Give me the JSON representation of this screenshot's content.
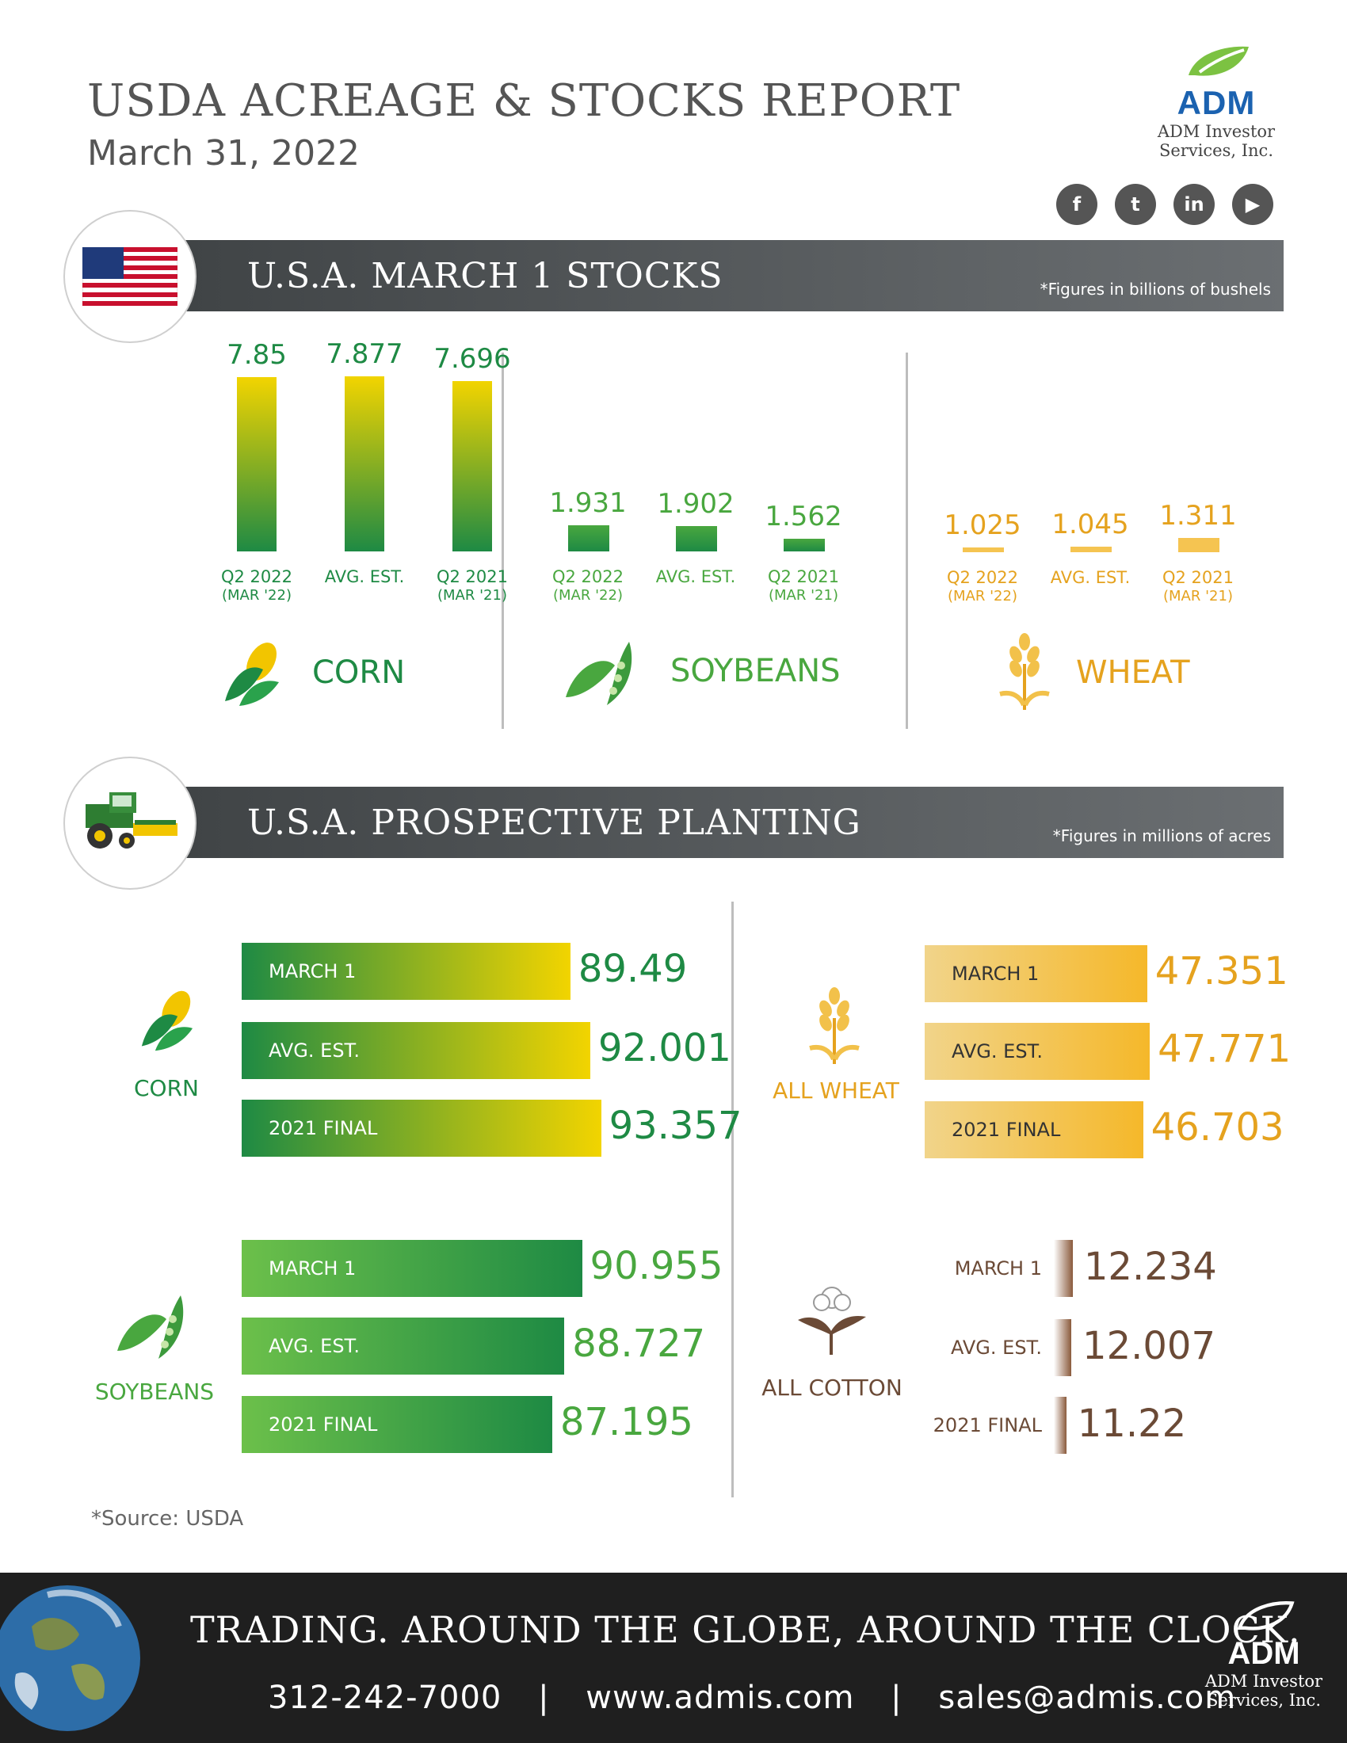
{
  "header": {
    "title": "USDA ACREAGE & STOCKS REPORT",
    "date": "March 31, 2022",
    "logo_text": "ADM",
    "logo_sub_1": "ADM Investor",
    "logo_sub_2": "Services, Inc."
  },
  "social": {
    "facebook": "f",
    "twitter": "t",
    "linkedin": "in",
    "youtube": "▶"
  },
  "stocks": {
    "title": "U.S.A. MARCH 1 STOCKS",
    "note": "*Figures in billions of bushels"
  },
  "planting": {
    "title": "U.S.A. PROSPECTIVE PLANTING",
    "note": "*Figures in millions of acres"
  },
  "colors": {
    "corn_green": "#1e8a44",
    "corn_yellow": "#f2d400",
    "soy_green": "#3c9a3c",
    "wheat_gold": "#e5a21e",
    "cotton_brown": "#6b4a36",
    "band_gray": "#555a5d"
  },
  "chart_data": [
    {
      "type": "bar",
      "crop": "CORN",
      "categories": [
        "Q2 2022",
        "AVG. EST.",
        "Q2 2021"
      ],
      "sublabels": [
        "(MAR '22)",
        "",
        "(MAR '21)"
      ],
      "values": [
        7.85,
        7.877,
        7.696
      ],
      "value_labels": [
        "7.85",
        "7.877",
        "7.696"
      ]
    },
    {
      "type": "bar",
      "crop": "SOYBEANS",
      "categories": [
        "Q2 2022",
        "AVG. EST.",
        "Q2 2021"
      ],
      "sublabels": [
        "(MAR '22)",
        "",
        "(MAR '21)"
      ],
      "values": [
        1.931,
        1.902,
        1.562
      ],
      "value_labels": [
        "1.931",
        "1.902",
        "1.562"
      ]
    },
    {
      "type": "bar",
      "crop": "WHEAT",
      "categories": [
        "Q2 2022",
        "AVG. EST.",
        "Q2 2021"
      ],
      "sublabels": [
        "(MAR '22)",
        "",
        "(MAR '21)"
      ],
      "values": [
        1.025,
        1.045,
        1.311
      ],
      "value_labels": [
        "1.025",
        "1.045",
        "1.311"
      ]
    },
    {
      "type": "bar",
      "crop": "CORN",
      "categories": [
        "MARCH 1",
        "AVG. EST.",
        "2021 FINAL"
      ],
      "values": [
        89.49,
        92.001,
        93.357
      ],
      "value_labels": [
        "89.49",
        "92.001",
        "93.357"
      ]
    },
    {
      "type": "bar",
      "crop": "SOYBEANS",
      "categories": [
        "MARCH 1",
        "AVG. EST.",
        "2021 FINAL"
      ],
      "values": [
        90.955,
        88.727,
        87.195
      ],
      "value_labels": [
        "90.955",
        "88.727",
        "87.195"
      ]
    },
    {
      "type": "bar",
      "crop": "ALL WHEAT",
      "categories": [
        "MARCH 1",
        "AVG. EST.",
        "2021 FINAL"
      ],
      "values": [
        47.351,
        47.771,
        46.703
      ],
      "value_labels": [
        "47.351",
        "47.771",
        "46.703"
      ]
    },
    {
      "type": "bar",
      "crop": "ALL COTTON",
      "categories": [
        "MARCH 1",
        "AVG. EST.",
        "2021 FINAL"
      ],
      "values": [
        12.234,
        12.007,
        11.22
      ],
      "value_labels": [
        "12.234",
        "12.007",
        "11.22"
      ]
    }
  ],
  "source": "*Source: USDA",
  "footer": {
    "tagline": "TRADING. AROUND THE GLOBE, AROUND THE CLOCK.",
    "phone": "312-242-7000",
    "web": "www.admis.com",
    "email": "sales@admis.com",
    "sep": "|",
    "logo_text": "ADM",
    "logo_sub_1": "ADM Investor",
    "logo_sub_2": "Services, Inc."
  }
}
